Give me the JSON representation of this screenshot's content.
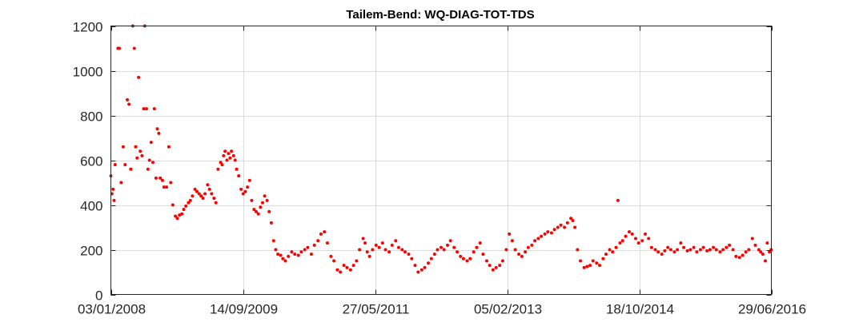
{
  "chart_data": {
    "type": "scatter",
    "title": "Tailem-Bend: WQ-DIAG-TOT-TDS",
    "xlabel": "",
    "ylabel": "",
    "grid": true,
    "marker_color": "#ff0000",
    "x_range": [
      "03/01/2008",
      "29/06/2016"
    ],
    "xlim": [
      "2008-01-03",
      "2016-06-29"
    ],
    "ylim": [
      0,
      1200
    ],
    "x_ticks": [
      "03/01/2008",
      "14/09/2009",
      "27/05/2011",
      "05/02/2013",
      "18/10/2014",
      "29/06/2016"
    ],
    "x_tick_dates": [
      "2008-01-03",
      "2009-09-14",
      "2011-05-27",
      "2013-02-05",
      "2014-10-18",
      "2016-06-29"
    ],
    "y_ticks": [
      "0",
      "200",
      "400",
      "600",
      "800",
      "1000",
      "1200"
    ],
    "y_tick_values": [
      0,
      200,
      400,
      600,
      800,
      1000,
      1200
    ],
    "series": [
      {
        "points": [
          [
            "2008-01-03",
            530
          ],
          [
            "2008-01-08",
            450
          ],
          [
            "2008-01-13",
            470
          ],
          [
            "2008-01-18",
            420
          ],
          [
            "2008-01-23",
            580
          ],
          [
            "2008-02-05",
            1100
          ],
          [
            "2008-02-12",
            1100
          ],
          [
            "2008-02-20",
            500
          ],
          [
            "2008-03-01",
            660
          ],
          [
            "2008-03-10",
            580
          ],
          [
            "2008-03-20",
            870
          ],
          [
            "2008-03-28",
            850
          ],
          [
            "2008-04-05",
            560
          ],
          [
            "2008-04-15",
            1200
          ],
          [
            "2008-04-22",
            1100
          ],
          [
            "2008-04-28",
            660
          ],
          [
            "2008-05-05",
            610
          ],
          [
            "2008-05-12",
            970
          ],
          [
            "2008-05-20",
            640
          ],
          [
            "2008-05-28",
            620
          ],
          [
            "2008-06-05",
            830
          ],
          [
            "2008-06-10",
            1200
          ],
          [
            "2008-06-18",
            830
          ],
          [
            "2008-06-25",
            560
          ],
          [
            "2008-07-02",
            600
          ],
          [
            "2008-07-10",
            680
          ],
          [
            "2008-07-18",
            590
          ],
          [
            "2008-07-25",
            830
          ],
          [
            "2008-08-02",
            520
          ],
          [
            "2008-08-08",
            740
          ],
          [
            "2008-08-15",
            720
          ],
          [
            "2008-08-22",
            520
          ],
          [
            "2008-09-01",
            510
          ],
          [
            "2008-09-08",
            480
          ],
          [
            "2008-09-20",
            480
          ],
          [
            "2008-10-01",
            660
          ],
          [
            "2008-10-10",
            500
          ],
          [
            "2008-10-20",
            400
          ],
          [
            "2008-11-01",
            350
          ],
          [
            "2008-11-10",
            340
          ],
          [
            "2008-11-20",
            355
          ],
          [
            "2008-12-01",
            360
          ],
          [
            "2008-12-10",
            380
          ],
          [
            "2008-12-20",
            395
          ],
          [
            "2009-01-01",
            410
          ],
          [
            "2009-01-10",
            420
          ],
          [
            "2009-01-20",
            440
          ],
          [
            "2009-02-01",
            470
          ],
          [
            "2009-02-10",
            460
          ],
          [
            "2009-02-20",
            450
          ],
          [
            "2009-03-01",
            440
          ],
          [
            "2009-03-10",
            430
          ],
          [
            "2009-03-20",
            450
          ],
          [
            "2009-04-01",
            490
          ],
          [
            "2009-04-10",
            470
          ],
          [
            "2009-04-20",
            450
          ],
          [
            "2009-05-01",
            430
          ],
          [
            "2009-05-10",
            410
          ],
          [
            "2009-05-20",
            560
          ],
          [
            "2009-06-01",
            590
          ],
          [
            "2009-06-08",
            580
          ],
          [
            "2009-06-15",
            620
          ],
          [
            "2009-06-22",
            640
          ],
          [
            "2009-07-01",
            600
          ],
          [
            "2009-07-08",
            630
          ],
          [
            "2009-07-15",
            610
          ],
          [
            "2009-07-22",
            640
          ],
          [
            "2009-08-01",
            620
          ],
          [
            "2009-08-08",
            600
          ],
          [
            "2009-08-15",
            560
          ],
          [
            "2009-08-25",
            530
          ],
          [
            "2009-09-05",
            470
          ],
          [
            "2009-09-15",
            450
          ],
          [
            "2009-09-25",
            460
          ],
          [
            "2009-10-05",
            480
          ],
          [
            "2009-10-15",
            510
          ],
          [
            "2009-10-25",
            420
          ],
          [
            "2009-11-05",
            380
          ],
          [
            "2009-11-15",
            370
          ],
          [
            "2009-11-25",
            360
          ],
          [
            "2009-12-05",
            390
          ],
          [
            "2009-12-15",
            410
          ],
          [
            "2009-12-25",
            440
          ],
          [
            "2010-01-05",
            420
          ],
          [
            "2010-01-15",
            370
          ],
          [
            "2010-01-25",
            320
          ],
          [
            "2010-02-05",
            240
          ],
          [
            "2010-02-15",
            200
          ],
          [
            "2010-02-25",
            180
          ],
          [
            "2010-03-10",
            175
          ],
          [
            "2010-03-20",
            160
          ],
          [
            "2010-04-01",
            150
          ],
          [
            "2010-04-15",
            170
          ],
          [
            "2010-05-01",
            190
          ],
          [
            "2010-05-15",
            180
          ],
          [
            "2010-06-01",
            175
          ],
          [
            "2010-06-15",
            190
          ],
          [
            "2010-07-01",
            200
          ],
          [
            "2010-07-15",
            210
          ],
          [
            "2010-08-01",
            180
          ],
          [
            "2010-08-15",
            220
          ],
          [
            "2010-09-01",
            240
          ],
          [
            "2010-09-15",
            270
          ],
          [
            "2010-10-01",
            280
          ],
          [
            "2010-10-15",
            230
          ],
          [
            "2010-11-01",
            170
          ],
          [
            "2010-11-15",
            150
          ],
          [
            "2010-12-01",
            110
          ],
          [
            "2010-12-15",
            100
          ],
          [
            "2011-01-01",
            130
          ],
          [
            "2011-01-15",
            120
          ],
          [
            "2011-02-01",
            110
          ],
          [
            "2011-02-15",
            130
          ],
          [
            "2011-03-01",
            150
          ],
          [
            "2011-03-15",
            200
          ],
          [
            "2011-04-01",
            250
          ],
          [
            "2011-04-10",
            230
          ],
          [
            "2011-04-20",
            190
          ],
          [
            "2011-05-01",
            170
          ],
          [
            "2011-05-15",
            200
          ],
          [
            "2011-06-01",
            220
          ],
          [
            "2011-06-15",
            210
          ],
          [
            "2011-07-01",
            230
          ],
          [
            "2011-07-15",
            200
          ],
          [
            "2011-08-01",
            190
          ],
          [
            "2011-08-15",
            220
          ],
          [
            "2011-09-01",
            240
          ],
          [
            "2011-09-15",
            210
          ],
          [
            "2011-10-01",
            200
          ],
          [
            "2011-10-15",
            190
          ],
          [
            "2011-11-01",
            180
          ],
          [
            "2011-11-15",
            160
          ],
          [
            "2011-12-01",
            130
          ],
          [
            "2011-12-15",
            100
          ],
          [
            "2012-01-01",
            110
          ],
          [
            "2012-01-15",
            120
          ],
          [
            "2012-02-01",
            140
          ],
          [
            "2012-02-15",
            160
          ],
          [
            "2012-03-01",
            180
          ],
          [
            "2012-03-15",
            200
          ],
          [
            "2012-04-01",
            210
          ],
          [
            "2012-04-15",
            200
          ],
          [
            "2012-05-01",
            220
          ],
          [
            "2012-05-15",
            240
          ],
          [
            "2012-06-01",
            210
          ],
          [
            "2012-06-15",
            190
          ],
          [
            "2012-07-01",
            170
          ],
          [
            "2012-07-15",
            160
          ],
          [
            "2012-08-01",
            150
          ],
          [
            "2012-08-15",
            160
          ],
          [
            "2012-09-01",
            190
          ],
          [
            "2012-09-15",
            210
          ],
          [
            "2012-10-01",
            230
          ],
          [
            "2012-10-15",
            180
          ],
          [
            "2012-11-01",
            150
          ],
          [
            "2012-11-15",
            130
          ],
          [
            "2012-12-01",
            110
          ],
          [
            "2012-12-15",
            120
          ],
          [
            "2013-01-01",
            130
          ],
          [
            "2013-01-15",
            150
          ],
          [
            "2013-02-01",
            200
          ],
          [
            "2013-02-15",
            270
          ],
          [
            "2013-03-01",
            240
          ],
          [
            "2013-03-15",
            200
          ],
          [
            "2013-04-01",
            180
          ],
          [
            "2013-04-15",
            170
          ],
          [
            "2013-05-01",
            190
          ],
          [
            "2013-05-15",
            210
          ],
          [
            "2013-06-01",
            220
          ],
          [
            "2013-06-15",
            240
          ],
          [
            "2013-07-01",
            250
          ],
          [
            "2013-07-15",
            260
          ],
          [
            "2013-08-01",
            270
          ],
          [
            "2013-08-15",
            280
          ],
          [
            "2013-09-01",
            275
          ],
          [
            "2013-09-15",
            290
          ],
          [
            "2013-10-01",
            300
          ],
          [
            "2013-10-15",
            310
          ],
          [
            "2013-11-01",
            300
          ],
          [
            "2013-11-15",
            320
          ],
          [
            "2013-12-01",
            340
          ],
          [
            "2013-12-10",
            330
          ],
          [
            "2013-12-20",
            300
          ],
          [
            "2014-01-01",
            200
          ],
          [
            "2014-01-15",
            150
          ],
          [
            "2014-02-01",
            120
          ],
          [
            "2014-02-15",
            125
          ],
          [
            "2014-03-01",
            130
          ],
          [
            "2014-03-15",
            150
          ],
          [
            "2014-04-01",
            140
          ],
          [
            "2014-04-15",
            130
          ],
          [
            "2014-05-01",
            160
          ],
          [
            "2014-05-15",
            180
          ],
          [
            "2014-06-01",
            200
          ],
          [
            "2014-06-15",
            190
          ],
          [
            "2014-07-01",
            210
          ],
          [
            "2014-07-10",
            420
          ],
          [
            "2014-07-20",
            230
          ],
          [
            "2014-08-01",
            240
          ],
          [
            "2014-08-15",
            260
          ],
          [
            "2014-09-01",
            280
          ],
          [
            "2014-09-15",
            270
          ],
          [
            "2014-10-01",
            250
          ],
          [
            "2014-10-15",
            230
          ],
          [
            "2014-11-01",
            240
          ],
          [
            "2014-11-15",
            270
          ],
          [
            "2014-12-01",
            250
          ],
          [
            "2014-12-15",
            210
          ],
          [
            "2015-01-01",
            200
          ],
          [
            "2015-01-15",
            190
          ],
          [
            "2015-02-01",
            180
          ],
          [
            "2015-02-15",
            195
          ],
          [
            "2015-03-01",
            210
          ],
          [
            "2015-03-15",
            200
          ],
          [
            "2015-04-01",
            190
          ],
          [
            "2015-04-15",
            200
          ],
          [
            "2015-05-01",
            230
          ],
          [
            "2015-05-15",
            210
          ],
          [
            "2015-06-01",
            195
          ],
          [
            "2015-06-15",
            200
          ],
          [
            "2015-07-01",
            210
          ],
          [
            "2015-07-15",
            190
          ],
          [
            "2015-08-01",
            200
          ],
          [
            "2015-08-15",
            210
          ],
          [
            "2015-09-01",
            195
          ],
          [
            "2015-09-15",
            200
          ],
          [
            "2015-10-01",
            210
          ],
          [
            "2015-10-15",
            200
          ],
          [
            "2015-11-01",
            190
          ],
          [
            "2015-11-15",
            200
          ],
          [
            "2015-12-01",
            210
          ],
          [
            "2015-12-15",
            220
          ],
          [
            "2016-01-01",
            200
          ],
          [
            "2016-01-15",
            170
          ],
          [
            "2016-02-01",
            165
          ],
          [
            "2016-02-15",
            175
          ],
          [
            "2016-03-01",
            190
          ],
          [
            "2016-03-15",
            200
          ],
          [
            "2016-04-01",
            250
          ],
          [
            "2016-04-15",
            220
          ],
          [
            "2016-05-01",
            200
          ],
          [
            "2016-05-10",
            190
          ],
          [
            "2016-05-20",
            180
          ],
          [
            "2016-06-01",
            150
          ],
          [
            "2016-06-10",
            230
          ],
          [
            "2016-06-20",
            190
          ],
          [
            "2016-06-28",
            200
          ]
        ]
      }
    ]
  }
}
